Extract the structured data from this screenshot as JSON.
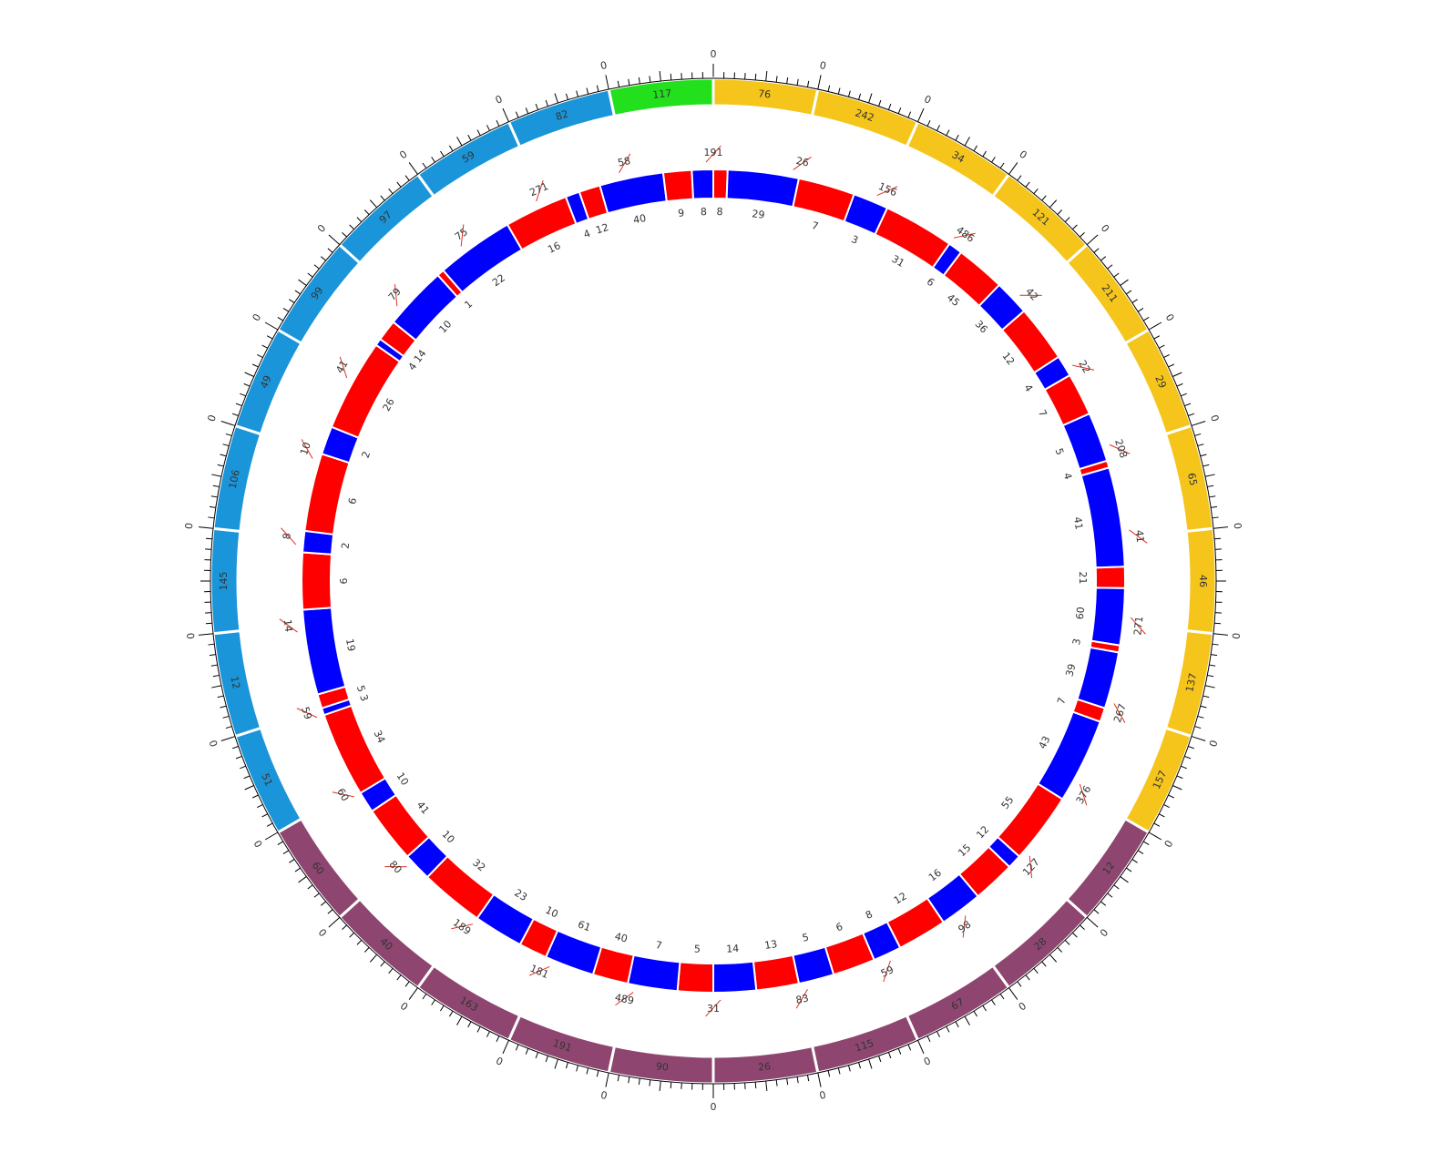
{
  "chart_data": {
    "type": "circos",
    "segment_tick_label": "0",
    "segments": [
      {
        "label": "76",
        "color": "#f5c51c"
      },
      {
        "label": "242",
        "color": "#f5c51c"
      },
      {
        "label": "34",
        "color": "#f5c51c"
      },
      {
        "label": "121",
        "color": "#f5c51c"
      },
      {
        "label": "211",
        "color": "#f5c51c"
      },
      {
        "label": "29",
        "color": "#f5c51c"
      },
      {
        "label": "65",
        "color": "#f5c51c"
      },
      {
        "label": "46",
        "color": "#f5c51c"
      },
      {
        "label": "137",
        "color": "#f5c51c"
      },
      {
        "label": "157",
        "color": "#f5c51c"
      },
      {
        "label": "12",
        "color": "#8e4670"
      },
      {
        "label": "28",
        "color": "#8e4670"
      },
      {
        "label": "67",
        "color": "#8e4670"
      },
      {
        "label": "115",
        "color": "#8e4670"
      },
      {
        "label": "26",
        "color": "#8e4670"
      },
      {
        "label": "90",
        "color": "#8e4670"
      },
      {
        "label": "191",
        "color": "#8e4670"
      },
      {
        "label": "163",
        "color": "#8e4670"
      },
      {
        "label": "40",
        "color": "#8e4670"
      },
      {
        "label": "60",
        "color": "#8e4670"
      },
      {
        "label": "51",
        "color": "#1b95d9"
      },
      {
        "label": "12",
        "color": "#1b95d9"
      },
      {
        "label": "145",
        "color": "#1b95d9"
      },
      {
        "label": "106",
        "color": "#1b95d9"
      },
      {
        "label": "49",
        "color": "#1b95d9"
      },
      {
        "label": "99",
        "color": "#1b95d9"
      },
      {
        "label": "97",
        "color": "#1b95d9"
      },
      {
        "label": "59",
        "color": "#1b95d9"
      },
      {
        "label": "82",
        "color": "#1b95d9"
      },
      {
        "label": "117",
        "color": "#22e01c"
      }
    ],
    "middle_labels": [
      "191",
      "26",
      "156",
      "486",
      "42",
      "22",
      "208",
      "41",
      "271",
      "267",
      "376",
      "127",
      "98",
      "59",
      "83",
      "31",
      "489",
      "181",
      "189",
      "80",
      "60",
      "59",
      "14",
      "8",
      "10",
      "41",
      "79",
      "75",
      "271",
      "58"
    ],
    "inner_track": [
      {
        "label": "8",
        "color": "#ff0000",
        "start": 0,
        "end": 2
      },
      {
        "label": "29",
        "color": "#0000ff",
        "start": 2,
        "end": 12
      },
      {
        "label": "7",
        "color": "#ff0000",
        "start": 12,
        "end": 20
      },
      {
        "label": "3",
        "color": "#0000ff",
        "start": 20,
        "end": 25
      },
      {
        "label": "31",
        "color": "#ff0000",
        "start": 25,
        "end": 35
      },
      {
        "label": "6",
        "color": "#0000ff",
        "start": 35,
        "end": 37
      },
      {
        "label": "45",
        "color": "#ff0000",
        "start": 37,
        "end": 44
      },
      {
        "label": "36",
        "color": "#0000ff",
        "start": 44,
        "end": 49
      },
      {
        "label": "12",
        "color": "#ff0000",
        "start": 49,
        "end": 57
      },
      {
        "label": "4",
        "color": "#0000ff",
        "start": 57,
        "end": 60
      },
      {
        "label": "7",
        "color": "#ff0000",
        "start": 60,
        "end": 66
      },
      {
        "label": "5",
        "color": "#0000ff",
        "start": 66,
        "end": 73
      },
      {
        "label": "4",
        "color": "#ff0000",
        "start": 73,
        "end": 74
      },
      {
        "label": "41",
        "color": "#0000ff",
        "start": 74,
        "end": 88
      },
      {
        "label": "21",
        "color": "#ff0000",
        "start": 88,
        "end": 91
      },
      {
        "label": "60",
        "color": "#0000ff",
        "start": 91,
        "end": 99
      },
      {
        "label": "3",
        "color": "#ff0000",
        "start": 99,
        "end": 100
      },
      {
        "label": "39",
        "color": "#0000ff",
        "start": 100,
        "end": 108
      },
      {
        "label": "7",
        "color": "#ff0000",
        "start": 108,
        "end": 110
      },
      {
        "label": "43",
        "color": "#0000ff",
        "start": 110,
        "end": 122
      },
      {
        "label": "55",
        "color": "#ff0000",
        "start": 122,
        "end": 132
      },
      {
        "label": "12",
        "color": "#0000ff",
        "start": 132,
        "end": 134
      },
      {
        "label": "15",
        "color": "#ff0000",
        "start": 134,
        "end": 140
      },
      {
        "label": "16",
        "color": "#0000ff",
        "start": 140,
        "end": 146
      },
      {
        "label": "12",
        "color": "#ff0000",
        "start": 146,
        "end": 153
      },
      {
        "label": "8",
        "color": "#0000ff",
        "start": 153,
        "end": 157
      },
      {
        "label": "6",
        "color": "#ff0000",
        "start": 157,
        "end": 163
      },
      {
        "label": "5",
        "color": "#0000ff",
        "start": 163,
        "end": 168
      },
      {
        "label": "13",
        "color": "#ff0000",
        "start": 168,
        "end": 174
      },
      {
        "label": "14",
        "color": "#0000ff",
        "start": 174,
        "end": 180
      },
      {
        "label": "5",
        "color": "#ff0000",
        "start": 180,
        "end": 185
      },
      {
        "label": "7",
        "color": "#0000ff",
        "start": 185,
        "end": 192
      },
      {
        "label": "40",
        "color": "#ff0000",
        "start": 192,
        "end": 197
      },
      {
        "label": "61",
        "color": "#0000ff",
        "start": 197,
        "end": 204
      },
      {
        "label": "10",
        "color": "#ff0000",
        "start": 204,
        "end": 208
      },
      {
        "label": "23",
        "color": "#0000ff",
        "start": 208,
        "end": 215
      },
      {
        "label": "32",
        "color": "#ff0000",
        "start": 215,
        "end": 224
      },
      {
        "label": "10",
        "color": "#0000ff",
        "start": 224,
        "end": 228
      },
      {
        "label": "41",
        "color": "#ff0000",
        "start": 228,
        "end": 236
      },
      {
        "label": "10",
        "color": "#0000ff",
        "start": 236,
        "end": 239
      },
      {
        "label": "34",
        "color": "#ff0000",
        "start": 239,
        "end": 251
      },
      {
        "label": "3",
        "color": "#0000ff",
        "start": 251,
        "end": 252
      },
      {
        "label": "5",
        "color": "#ff0000",
        "start": 252,
        "end": 254
      },
      {
        "label": "19",
        "color": "#0000ff",
        "start": 254,
        "end": 266
      },
      {
        "label": "6",
        "color": "#ff0000",
        "start": 266,
        "end": 274
      },
      {
        "label": "2",
        "color": "#0000ff",
        "start": 274,
        "end": 277
      },
      {
        "label": "6",
        "color": "#ff0000",
        "start": 277,
        "end": 288
      },
      {
        "label": "2",
        "color": "#0000ff",
        "start": 288,
        "end": 292
      },
      {
        "label": "26",
        "color": "#ff0000",
        "start": 292,
        "end": 305
      },
      {
        "label": "4",
        "color": "#0000ff",
        "start": 305,
        "end": 306
      },
      {
        "label": "14",
        "color": "#ff0000",
        "start": 306,
        "end": 309
      },
      {
        "label": "10",
        "color": "#0000ff",
        "start": 309,
        "end": 318
      },
      {
        "label": "1",
        "color": "#ff0000",
        "start": 318,
        "end": 319
      },
      {
        "label": "22",
        "color": "#0000ff",
        "start": 319,
        "end": 330
      },
      {
        "label": "16",
        "color": "#ff0000",
        "start": 330,
        "end": 339
      },
      {
        "label": "4",
        "color": "#0000ff",
        "start": 339,
        "end": 341
      },
      {
        "label": "12",
        "color": "#ff0000",
        "start": 341,
        "end": 344
      },
      {
        "label": "40",
        "color": "#0000ff",
        "start": 344,
        "end": 353
      },
      {
        "label": "9",
        "color": "#ff0000",
        "start": 353,
        "end": 357
      },
      {
        "label": "8",
        "color": "#0000ff",
        "start": 357,
        "end": 360
      }
    ]
  }
}
